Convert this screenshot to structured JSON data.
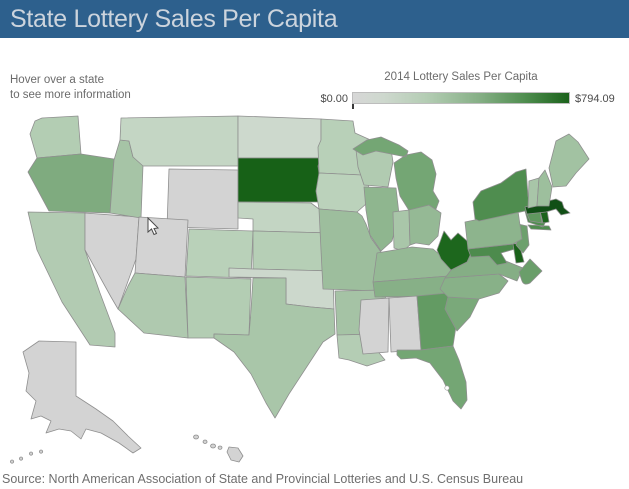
{
  "header": {
    "title": "State Lottery Sales Per Capita"
  },
  "info": {
    "line1": "Hover over a state",
    "line2": "to see more information"
  },
  "legend": {
    "title": "2014 Lottery Sales Per Capita",
    "min_label": "$0.00",
    "max_label": "$794.09",
    "gradient_start_color": "#d7d7d7",
    "gradient_end_color": "#1b621b"
  },
  "source_line": "Source: North American Association of State and Provincial Lotteries and U.S. Census Bureau",
  "colors": {
    "header_bg": "#2d608d",
    "header_text": "#ccd4dd",
    "no_lottery_gray": "#d3d3d3",
    "state_border": "#8f8f8f",
    "max_green": "#176117"
  },
  "map": {
    "states": [
      {
        "id": "WA",
        "name": "Washington",
        "color": "#b3cdb3"
      },
      {
        "id": "OR",
        "name": "Oregon",
        "color": "#7fab7f"
      },
      {
        "id": "CA",
        "name": "California",
        "color": "#b2cbb2"
      },
      {
        "id": "NV",
        "name": "Nevada",
        "color": "#d3d3d3"
      },
      {
        "id": "ID",
        "name": "Idaho",
        "color": "#a6c4a6"
      },
      {
        "id": "MT",
        "name": "Montana",
        "color": "#c4d6c4"
      },
      {
        "id": "WY",
        "name": "Wyoming",
        "color": "#d3d3d3"
      },
      {
        "id": "UT",
        "name": "Utah",
        "color": "#d3d3d3"
      },
      {
        "id": "CO",
        "name": "Colorado",
        "color": "#b9d1b9"
      },
      {
        "id": "AZ",
        "name": "Arizona",
        "color": "#afc9af"
      },
      {
        "id": "NM",
        "name": "New Mexico",
        "color": "#b3cdb3"
      },
      {
        "id": "ND",
        "name": "North Dakota",
        "color": "#cdd9cd"
      },
      {
        "id": "SD",
        "name": "South Dakota",
        "color": "#176117"
      },
      {
        "id": "NE",
        "name": "Nebraska",
        "color": "#c3d5c3"
      },
      {
        "id": "KS",
        "name": "Kansas",
        "color": "#b6cfb6"
      },
      {
        "id": "OK",
        "name": "Oklahoma",
        "color": "#ccd8cc"
      },
      {
        "id": "TX",
        "name": "Texas",
        "color": "#a9c6a9"
      },
      {
        "id": "MN",
        "name": "Minnesota",
        "color": "#b8d0b8"
      },
      {
        "id": "IA",
        "name": "Iowa",
        "color": "#bbd2bb"
      },
      {
        "id": "MO",
        "name": "Missouri",
        "color": "#9dbe9d"
      },
      {
        "id": "AR",
        "name": "Arkansas",
        "color": "#a5c3a5"
      },
      {
        "id": "LA",
        "name": "Louisiana",
        "color": "#b4cdb4"
      },
      {
        "id": "WI",
        "name": "Wisconsin",
        "color": "#b1cbb1"
      },
      {
        "id": "IL",
        "name": "Illinois",
        "color": "#8fb68f"
      },
      {
        "id": "IN",
        "name": "Indiana",
        "color": "#a9c6a9"
      },
      {
        "id": "MI",
        "name": "Michigan",
        "color": "#74a674"
      },
      {
        "id": "OH",
        "name": "Ohio",
        "color": "#95b995"
      },
      {
        "id": "KY",
        "name": "Kentucky",
        "color": "#95b995"
      },
      {
        "id": "TN",
        "name": "Tennessee",
        "color": "#87b087"
      },
      {
        "id": "MS",
        "name": "Mississippi",
        "color": "#d3d3d3"
      },
      {
        "id": "AL",
        "name": "Alabama",
        "color": "#d3d3d3"
      },
      {
        "id": "GA",
        "name": "Georgia",
        "color": "#639b63"
      },
      {
        "id": "FL",
        "name": "Florida",
        "color": "#74a674"
      },
      {
        "id": "SC",
        "name": "South Carolina",
        "color": "#7aa97a"
      },
      {
        "id": "NC",
        "name": "North Carolina",
        "color": "#88b188"
      },
      {
        "id": "VA",
        "name": "Virginia",
        "color": "#85ae85"
      },
      {
        "id": "WV",
        "name": "West Virginia",
        "color": "#1d671d"
      },
      {
        "id": "MD",
        "name": "Maryland",
        "color": "#4d8b4d"
      },
      {
        "id": "DE",
        "name": "Delaware",
        "color": "#1a611a"
      },
      {
        "id": "DC",
        "name": "District of Columbia",
        "color": "#6a9e6a"
      },
      {
        "id": "NJ",
        "name": "New Jersey",
        "color": "#6da06d"
      },
      {
        "id": "PA",
        "name": "Pennsylvania",
        "color": "#8db48d"
      },
      {
        "id": "NY",
        "name": "New York",
        "color": "#4f8d4f"
      },
      {
        "id": "CT",
        "name": "Connecticut",
        "color": "#60985f"
      },
      {
        "id": "RI",
        "name": "Rhode Island",
        "color": "#1b631b"
      },
      {
        "id": "MA",
        "name": "Massachusetts",
        "color": "#114f16"
      },
      {
        "id": "VT",
        "name": "Vermont",
        "color": "#a8c5a8"
      },
      {
        "id": "NH",
        "name": "New Hampshire",
        "color": "#9dbf9d"
      },
      {
        "id": "ME",
        "name": "Maine",
        "color": "#a2c2a2"
      },
      {
        "id": "AK",
        "name": "Alaska",
        "color": "#d3d3d3"
      },
      {
        "id": "HI",
        "name": "Hawaii",
        "color": "#d3d3d3"
      }
    ]
  }
}
